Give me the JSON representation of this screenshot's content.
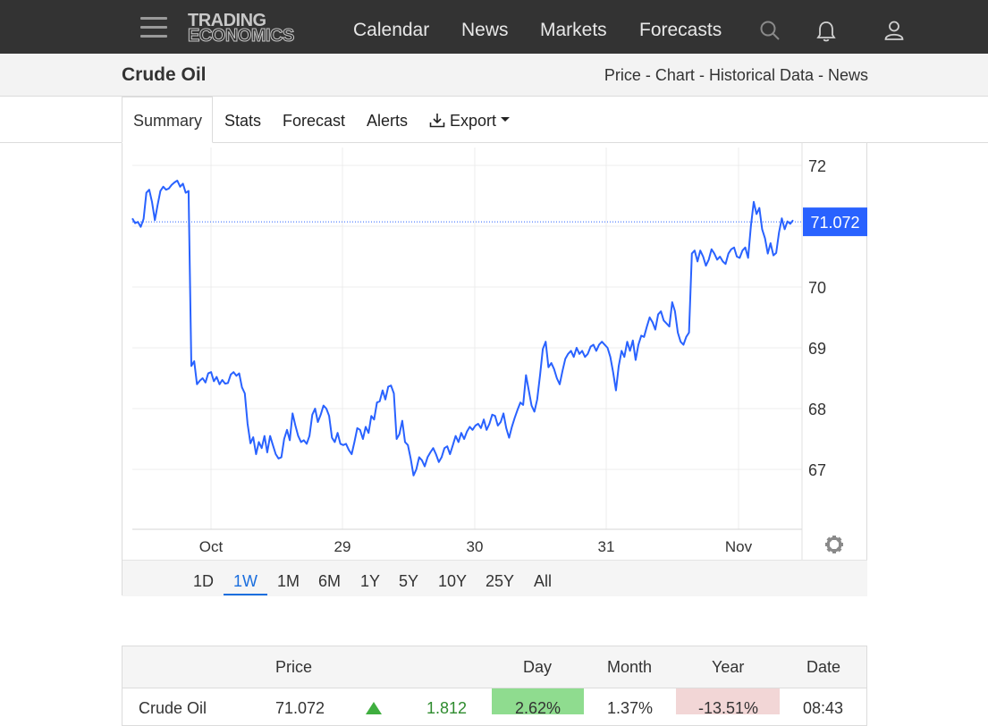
{
  "header": {
    "logo_line1": "TRADING",
    "logo_line2": "ECONOMICS",
    "nav": [
      "Calendar",
      "News",
      "Markets",
      "Forecasts"
    ],
    "icons": [
      "menu-icon",
      "search-icon",
      "bell-icon",
      "user-icon"
    ]
  },
  "subheader": {
    "title": "Crude Oil",
    "links": [
      "Price",
      "Chart",
      "Historical Data",
      "News"
    ],
    "separator": " - "
  },
  "tabs": {
    "summary": "Summary",
    "stats": "Stats",
    "forecast": "Forecast",
    "alerts": "Alerts",
    "export": "Export"
  },
  "chart_data": {
    "type": "line",
    "title": "",
    "xlabel": "",
    "ylabel": "",
    "x_ticks": [
      "Oct",
      "29",
      "30",
      "31",
      "Nov"
    ],
    "y_ticks": [
      67,
      68,
      69,
      70,
      72
    ],
    "ylim": [
      66,
      72.2
    ],
    "grid": true,
    "current_value": "71.072",
    "current_color": "#2962ff",
    "line_color": "#2962ff",
    "series": [
      {
        "values": [
          71.13,
          71.05,
          71.07,
          70.99,
          71.12,
          71.55,
          71.6,
          71.4,
          71.1,
          71.35,
          71.58,
          71.65,
          71.6,
          71.62,
          71.68,
          71.72,
          71.75,
          71.65,
          71.7,
          71.55,
          71.58,
          68.7,
          68.78,
          68.4,
          68.46,
          68.5,
          68.43,
          68.58,
          68.6,
          68.45,
          68.52,
          68.4,
          68.47,
          68.41,
          68.42,
          68.56,
          68.6,
          68.54,
          68.58,
          68.35,
          68.25,
          67.75,
          67.43,
          67.53,
          67.25,
          67.45,
          67.35,
          67.55,
          67.28,
          67.55,
          67.4,
          67.25,
          67.18,
          67.2,
          67.5,
          67.65,
          67.48,
          67.92,
          67.72,
          67.55,
          67.45,
          67.48,
          67.42,
          67.55,
          67.9,
          68.0,
          67.78,
          67.9,
          68.05,
          68.0,
          67.88,
          67.52,
          67.45,
          67.6,
          67.42,
          67.4,
          67.42,
          67.32,
          67.25,
          67.45,
          67.68,
          67.65,
          67.5,
          67.7,
          67.6,
          67.88,
          67.82,
          68.1,
          68.12,
          68.3,
          68.15,
          68.36,
          68.38,
          68.25,
          67.5,
          67.58,
          67.8,
          67.45,
          67.4,
          67.18,
          66.9,
          67.0,
          67.2,
          67.15,
          67.05,
          67.2,
          67.28,
          67.35,
          67.25,
          67.12,
          67.2,
          67.35,
          67.38,
          67.25,
          67.4,
          67.55,
          67.45,
          67.6,
          67.5,
          67.62,
          67.7,
          67.65,
          67.72,
          67.75,
          67.68,
          67.82,
          67.65,
          67.75,
          67.9,
          67.88,
          67.72,
          67.78,
          67.92,
          67.68,
          67.52,
          67.7,
          67.85,
          67.98,
          68.1,
          68.06,
          68.55,
          68.3,
          68.05,
          67.95,
          68.15,
          68.55,
          68.98,
          69.1,
          68.68,
          68.75,
          68.65,
          68.5,
          68.4,
          68.62,
          68.82,
          68.9,
          68.95,
          68.85,
          69.0,
          68.9,
          68.95,
          68.85,
          68.9,
          69.02,
          69.05,
          68.95,
          69.05,
          69.1,
          69.05,
          69.0,
          68.85,
          68.6,
          68.3,
          68.7,
          68.95,
          68.85,
          69.1,
          68.95,
          69.12,
          68.8,
          69.05,
          69.2,
          69.18,
          69.35,
          69.5,
          69.42,
          69.3,
          69.55,
          69.6,
          69.45,
          69.4,
          69.35,
          69.75,
          69.6,
          69.25,
          69.1,
          69.05,
          69.18,
          69.25,
          70.55,
          70.6,
          70.42,
          70.6,
          70.5,
          70.35,
          70.45,
          70.62,
          70.55,
          70.45,
          70.5,
          70.42,
          70.38,
          70.55,
          70.62,
          70.65,
          70.5,
          70.48,
          70.6,
          70.65,
          70.48,
          71.0,
          71.4,
          71.2,
          71.3,
          70.95,
          70.8,
          70.55,
          70.72,
          70.52,
          70.56,
          70.9,
          71.13,
          70.95,
          71.08,
          71.04,
          71.1
        ]
      }
    ]
  },
  "time_ranges": [
    "1D",
    "1W",
    "1M",
    "6M",
    "1Y",
    "5Y",
    "10Y",
    "25Y",
    "All"
  ],
  "active_range": "1W",
  "table": {
    "headers": [
      "Price",
      "Day",
      "Month",
      "Year",
      "Date"
    ],
    "row": {
      "name": "Crude Oil",
      "price": "71.072",
      "change": "1.812",
      "day": "2.62%",
      "month": "1.37%",
      "year": "-13.51%",
      "date": "08:43"
    },
    "up_color": "#2e8b2e",
    "day_bg": "#8fdc8f",
    "year_bg": "#f2d6d6"
  }
}
